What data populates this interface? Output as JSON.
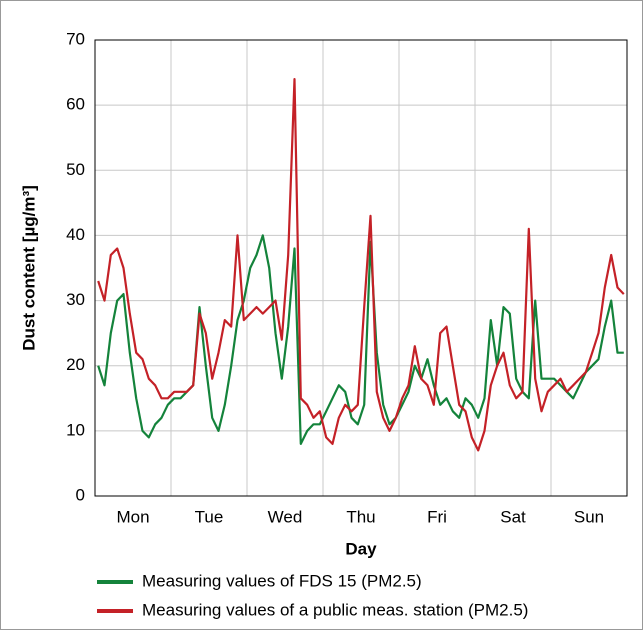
{
  "chart_data": {
    "type": "line",
    "xlabel": "Day",
    "ylabel": "Dust content [µg/m³]",
    "categories": [
      "Mon",
      "Tue",
      "Wed",
      "Thu",
      "Fri",
      "Sat",
      "Sun"
    ],
    "ylim": [
      0,
      70
    ],
    "yticks": [
      0,
      10,
      20,
      30,
      40,
      50,
      60,
      70
    ],
    "grid": true,
    "series": [
      {
        "name": "Measuring values of FDS 15 (PM2.5)",
        "color": "#14833b",
        "values": [
          [
            20,
            17,
            25,
            30,
            31,
            22,
            15,
            10,
            9,
            11,
            12,
            14
          ],
          [
            15,
            15,
            16,
            17,
            29,
            20,
            12,
            10,
            14,
            20,
            27,
            30
          ],
          [
            35,
            37,
            40,
            35,
            25,
            18,
            26,
            38,
            8,
            10,
            11,
            11
          ],
          [
            13,
            15,
            17,
            16,
            12,
            11,
            14,
            39,
            22,
            14,
            11,
            12
          ],
          [
            14,
            16,
            20,
            18,
            21,
            17,
            14,
            15,
            13,
            12,
            15,
            14
          ],
          [
            12,
            15,
            27,
            20,
            29,
            28,
            18,
            16,
            15,
            30,
            18,
            18
          ],
          [
            18,
            17,
            16,
            15,
            17,
            19,
            20,
            21,
            26,
            30,
            22,
            22
          ]
        ]
      },
      {
        "name": "Measuring values of a public meas. station (PM2.5)",
        "color": "#c42127",
        "values": [
          [
            33,
            30,
            37,
            38,
            35,
            28,
            22,
            21,
            18,
            17,
            15,
            15
          ],
          [
            16,
            16,
            16,
            17,
            28,
            25,
            18,
            22,
            27,
            26,
            40,
            27
          ],
          [
            28,
            29,
            28,
            29,
            30,
            24,
            37,
            64,
            15,
            14,
            12,
            13
          ],
          [
            9,
            8,
            12,
            14,
            13,
            14,
            29,
            43,
            16,
            12,
            10,
            12
          ],
          [
            15,
            17,
            23,
            18,
            17,
            14,
            25,
            26,
            20,
            14,
            13,
            9
          ],
          [
            7,
            10,
            17,
            20,
            22,
            17,
            15,
            16,
            41,
            18,
            13,
            16
          ],
          [
            17,
            18,
            16,
            17,
            18,
            19,
            22,
            25,
            32,
            37,
            32,
            31
          ]
        ]
      }
    ]
  }
}
